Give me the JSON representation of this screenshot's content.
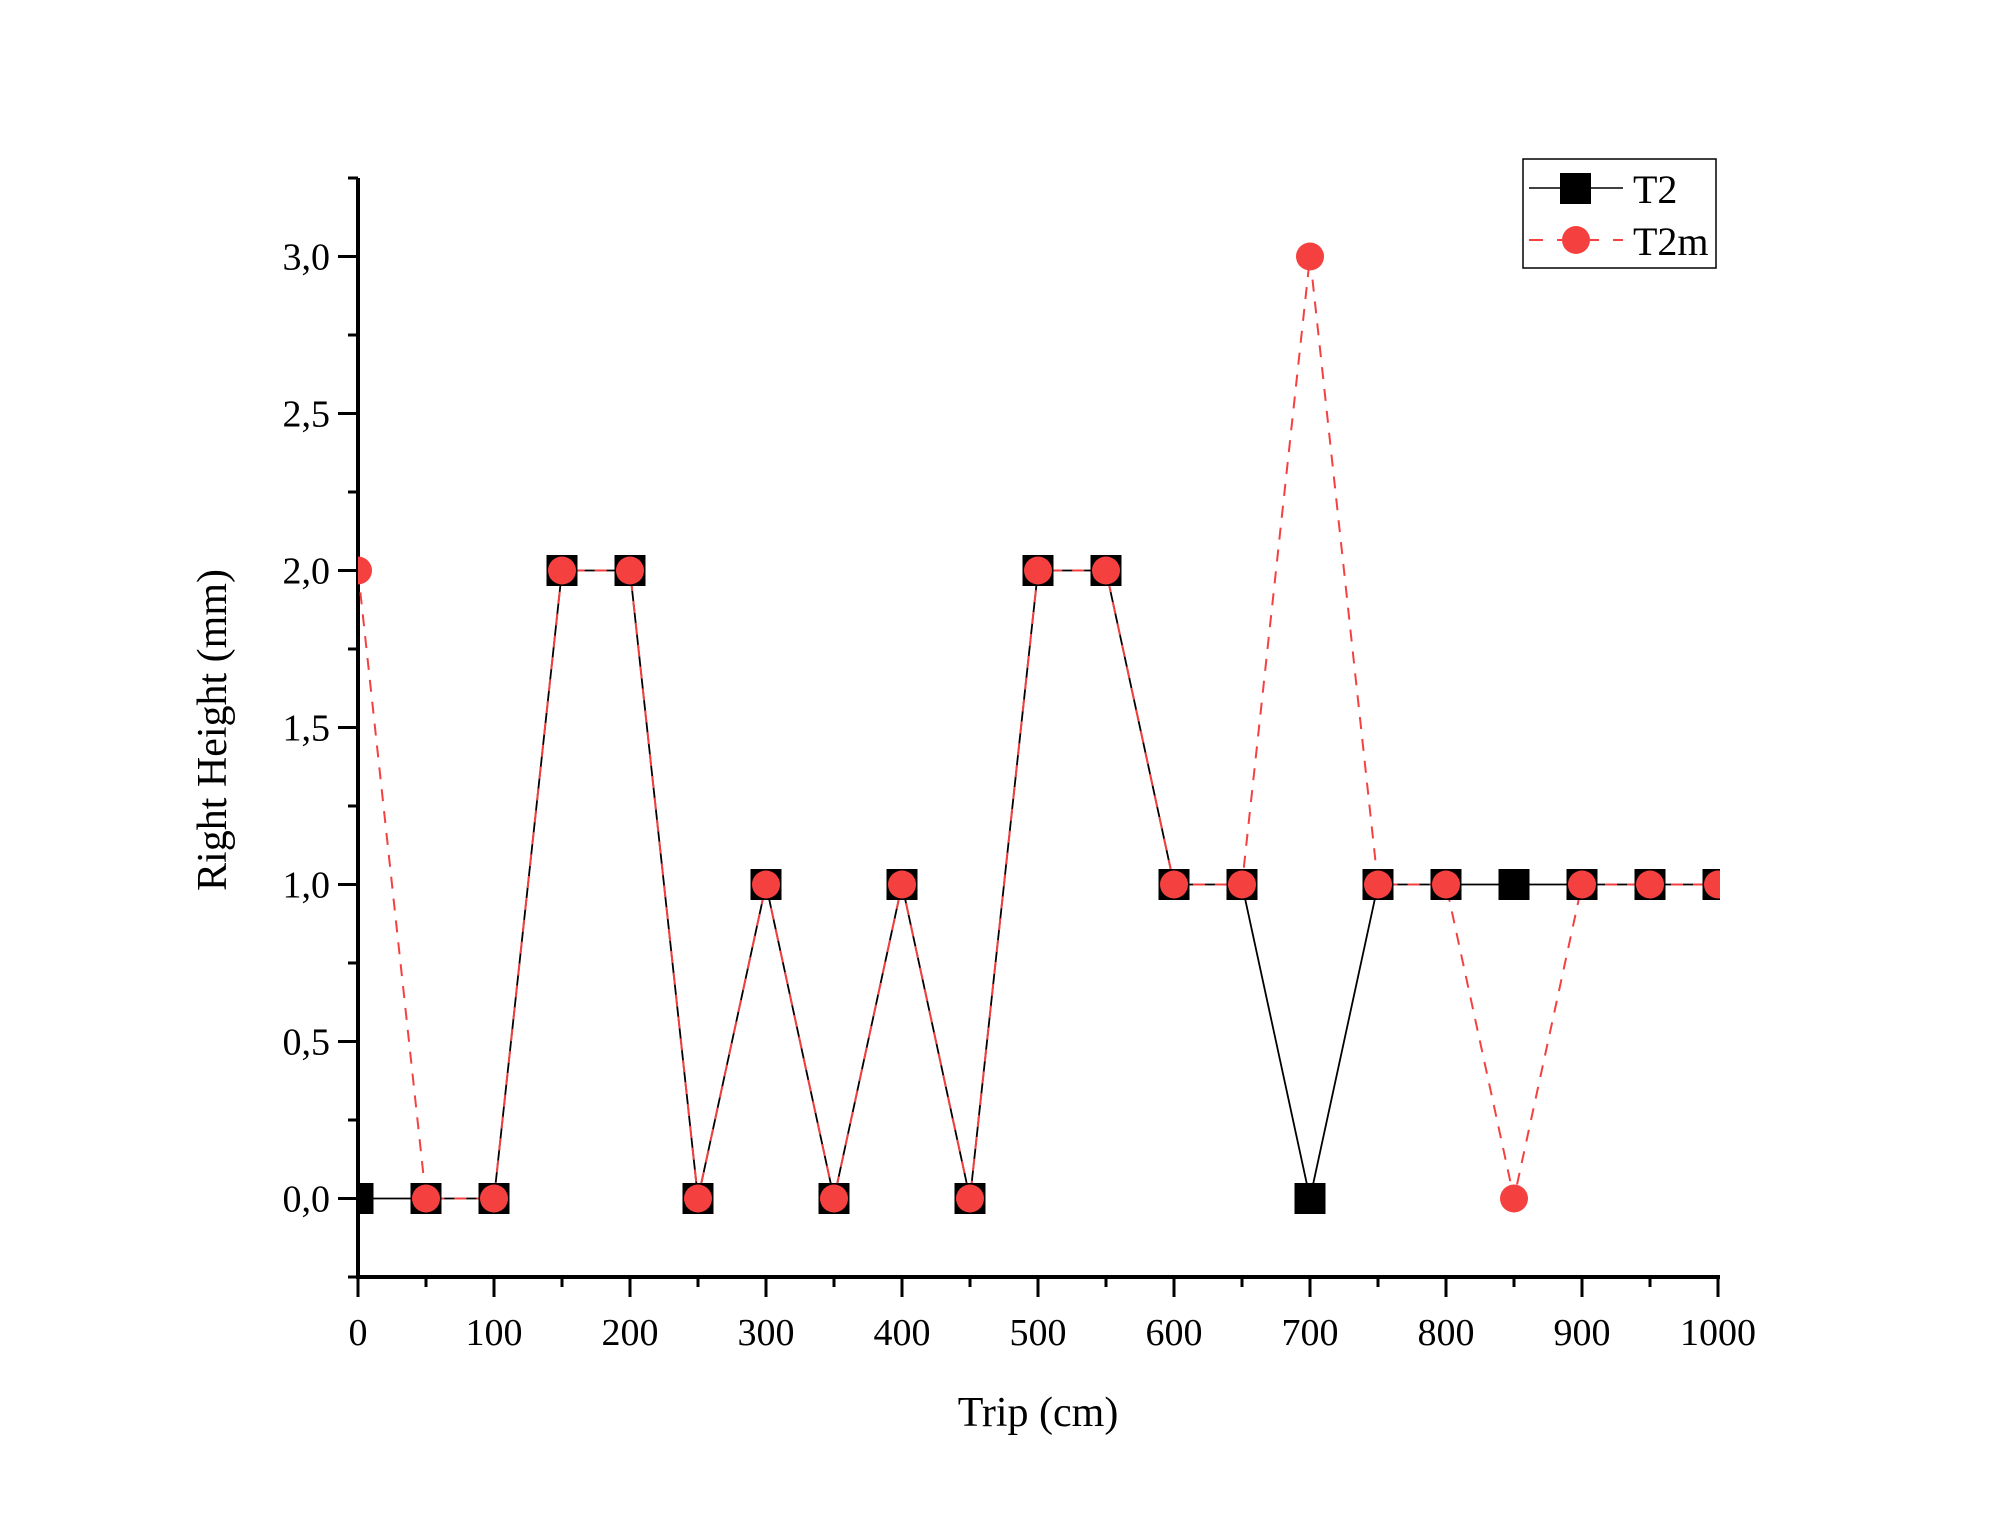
{
  "chart_data": {
    "type": "line",
    "xlabel": "Trip (cm)",
    "ylabel": "Right Height (mm)",
    "xlim": [
      0,
      1000
    ],
    "ylim": [
      -0.25,
      3.25
    ],
    "xticks": [
      0,
      100,
      200,
      300,
      400,
      500,
      600,
      700,
      800,
      900,
      1000
    ],
    "xtick_labels": [
      "0",
      "100",
      "200",
      "300",
      "400",
      "500",
      "600",
      "700",
      "800",
      "900",
      "1000"
    ],
    "yticks": [
      0,
      0.5,
      1,
      1.5,
      2,
      2.5,
      3
    ],
    "ytick_labels": [
      "0,0",
      "0,5",
      "1,0",
      "1,5",
      "2,0",
      "2,5",
      "3,0"
    ],
    "grid": false,
    "legend_position": "top-right",
    "x": [
      0,
      50,
      100,
      150,
      200,
      250,
      300,
      350,
      400,
      450,
      500,
      550,
      600,
      650,
      700,
      750,
      800,
      850,
      900,
      950,
      1000
    ],
    "series": [
      {
        "name": "T2",
        "color": "#000000",
        "marker": "square",
        "line": "solid",
        "values": [
          0,
          0,
          0,
          2,
          2,
          0,
          1,
          0,
          1,
          0,
          2,
          2,
          1,
          1,
          0,
          1,
          1,
          1,
          1,
          1,
          1
        ]
      },
      {
        "name": "T2m",
        "color": "#f54040",
        "marker": "circle",
        "line": "dashed",
        "values": [
          2,
          0,
          0,
          2,
          2,
          0,
          1,
          0,
          1,
          0,
          2,
          2,
          1,
          1,
          3,
          1,
          1,
          0,
          1,
          1,
          1
        ]
      }
    ]
  }
}
